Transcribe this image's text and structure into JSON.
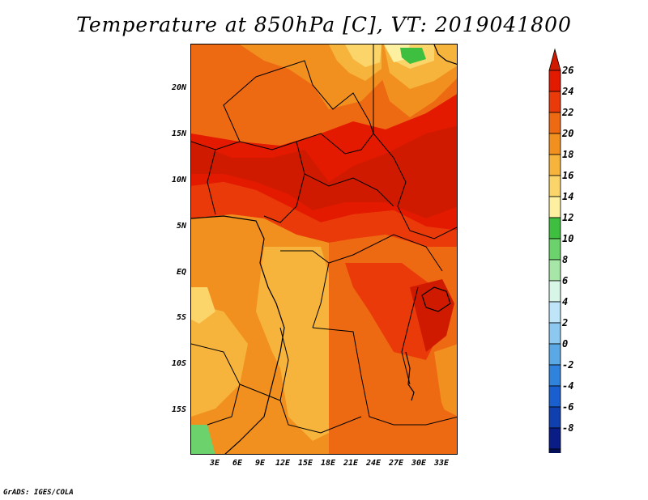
{
  "title": "Temperature at 850hPa [C], VT: 2019041800",
  "footer": "GrADS: IGES/COLA",
  "map": {
    "type": "filled-contour-map",
    "variable": "Temperature at 850hPa",
    "units": "C",
    "lat_ticks": [
      "20N",
      "15N",
      "10N",
      "5N",
      "EQ",
      "5S",
      "10S",
      "15S"
    ],
    "lon_ticks": [
      "3E",
      "6E",
      "9E",
      "12E",
      "15E",
      "18E",
      "21E",
      "24E",
      "27E",
      "30E",
      "33E"
    ]
  },
  "colorbar": {
    "levels": [
      "26",
      "24",
      "22",
      "20",
      "18",
      "16",
      "14",
      "12",
      "10",
      "8",
      "6",
      "4",
      "2",
      "0",
      "-2",
      "-4",
      "-6",
      "-8"
    ],
    "colors": [
      "#e41a00",
      "#ea3a0a",
      "#ee6a12",
      "#f1901e",
      "#f6b43c",
      "#fbd46a",
      "#fdf0a0",
      "#3fbf3f",
      "#6cd36c",
      "#a6e6a6",
      "#d8f6e8",
      "#bfe6f8",
      "#8cc8f0",
      "#5aa8e6",
      "#2f83dc",
      "#1a5fcf",
      "#1040b0",
      "#0a1c86",
      "#05105a"
    ],
    "over_color": "#d01a00",
    "under_color": "#d8dcf8"
  }
}
